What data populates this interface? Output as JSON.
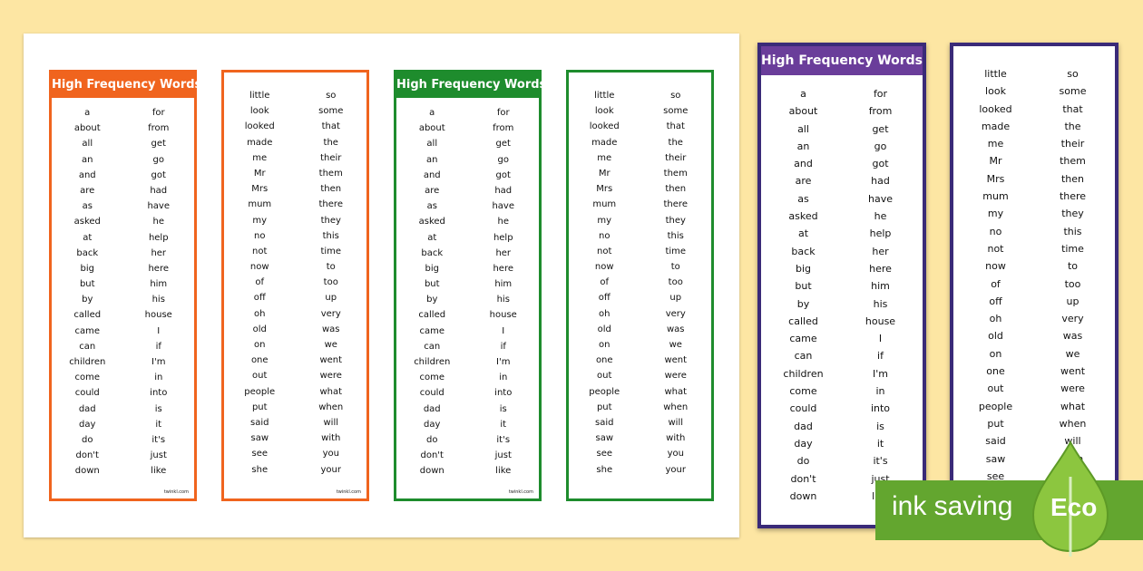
{
  "header": "High Frequency Words",
  "footer": "twinkl.com",
  "list_a_left": [
    "a",
    "about",
    "all",
    "an",
    "and",
    "are",
    "as",
    "asked",
    "at",
    "back",
    "big",
    "but",
    "by",
    "called",
    "came",
    "can",
    "children",
    "come",
    "could",
    "dad",
    "day",
    "do",
    "don't",
    "down"
  ],
  "list_a_right": [
    "for",
    "from",
    "get",
    "go",
    "got",
    "had",
    "have",
    "he",
    "help",
    "her",
    "here",
    "him",
    "his",
    "house",
    "I",
    "if",
    "I'm",
    "in",
    "into",
    "is",
    "it",
    "it's",
    "just",
    "like"
  ],
  "list_b_left": [
    "little",
    "look",
    "looked",
    "made",
    "me",
    "Mr",
    "Mrs",
    "mum",
    "my",
    "no",
    "not",
    "now",
    "of",
    "off",
    "oh",
    "old",
    "on",
    "one",
    "out",
    "people",
    "put",
    "said",
    "saw",
    "see",
    "she"
  ],
  "list_b_right": [
    "so",
    "some",
    "that",
    "the",
    "their",
    "them",
    "then",
    "there",
    "they",
    "this",
    "time",
    "to",
    "too",
    "up",
    "very",
    "was",
    "we",
    "went",
    "were",
    "what",
    "when",
    "will",
    "with",
    "you",
    "your"
  ],
  "eco_banner": {
    "text": "ink saving",
    "badge": "Eco"
  },
  "colors": {
    "orange": "#f0641e",
    "green": "#1e8c2d",
    "purple": "#3a2a78",
    "background": "#fde6a3",
    "eco": "#63a62f"
  }
}
